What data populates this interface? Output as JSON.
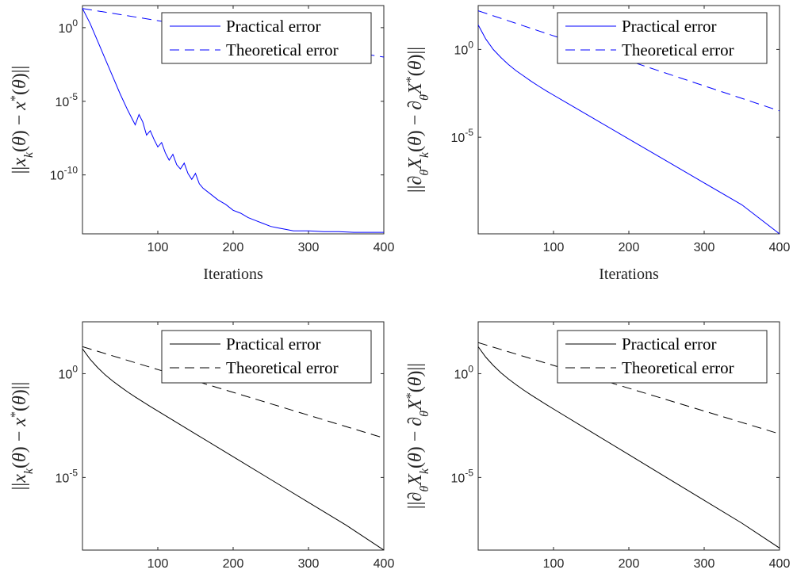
{
  "chart_data": [
    {
      "type": "line",
      "scale_y": "log",
      "xlim": [
        0,
        400
      ],
      "ylim_log10": [
        -14,
        1.5
      ],
      "x_ticks": [
        100,
        200,
        300,
        400
      ],
      "x_tick_labels": [
        "100",
        "200",
        "300",
        "400"
      ],
      "y_ticks_log10": [
        0,
        -5,
        -10
      ],
      "y_tick_labels": [
        {
          "base": "10",
          "exp": "0"
        },
        {
          "base": "10",
          "exp": "-5"
        },
        {
          "base": "10",
          "exp": "-10"
        }
      ],
      "xlabel": "Iterations",
      "ylabel": "||x_k(θ) − x*(θ)||",
      "color": "#0000ff",
      "legend": {
        "position": "top-right"
      },
      "series": [
        {
          "name": "Practical error",
          "style": "solid",
          "x": [
            0,
            10,
            20,
            30,
            40,
            50,
            60,
            70,
            75,
            80,
            85,
            90,
            95,
            100,
            105,
            110,
            115,
            120,
            125,
            130,
            135,
            140,
            145,
            150,
            155,
            160,
            170,
            180,
            190,
            200,
            210,
            220,
            230,
            240,
            250,
            260,
            270,
            280,
            290,
            300,
            320,
            340,
            360,
            380,
            400
          ],
          "log10_y": [
            1.3,
            0.3,
            -0.9,
            -2.1,
            -3.3,
            -4.5,
            -5.6,
            -6.6,
            -5.9,
            -6.4,
            -7.3,
            -7.0,
            -7.6,
            -8.1,
            -7.8,
            -8.5,
            -9.0,
            -8.6,
            -9.3,
            -9.6,
            -9.2,
            -9.9,
            -10.3,
            -9.9,
            -10.6,
            -10.9,
            -11.3,
            -11.7,
            -12.0,
            -12.4,
            -12.6,
            -12.9,
            -13.1,
            -13.3,
            -13.5,
            -13.6,
            -13.7,
            -13.8,
            -13.8,
            -13.8,
            -13.85,
            -13.85,
            -13.9,
            -13.9,
            -13.9
          ]
        },
        {
          "name": "Theoretical error",
          "style": "dashed",
          "x": [
            0,
            400
          ],
          "log10_y": [
            1.3,
            -2.0
          ]
        }
      ]
    },
    {
      "type": "line",
      "scale_y": "log",
      "xlim": [
        0,
        400
      ],
      "ylim_log10": [
        -10.5,
        2.5
      ],
      "x_ticks": [
        100,
        200,
        300,
        400
      ],
      "x_tick_labels": [
        "100",
        "200",
        "300",
        "400"
      ],
      "y_ticks_log10": [
        0,
        -5
      ],
      "y_tick_labels": [
        {
          "base": "10",
          "exp": "0"
        },
        {
          "base": "10",
          "exp": "-5"
        }
      ],
      "xlabel": "Iterations",
      "ylabel": "||∂θXk(θ) − ∂θX*(θ)||",
      "color": "#0000ff",
      "legend": {
        "position": "top-right"
      },
      "series": [
        {
          "name": "Practical error",
          "style": "solid",
          "x": [
            0,
            10,
            20,
            30,
            40,
            50,
            60,
            70,
            80,
            90,
            100,
            150,
            200,
            250,
            300,
            350,
            400
          ],
          "log10_y": [
            1.4,
            0.6,
            0.0,
            -0.45,
            -0.85,
            -1.2,
            -1.5,
            -1.8,
            -2.08,
            -2.35,
            -2.6,
            -3.85,
            -5.1,
            -6.35,
            -7.6,
            -8.85,
            -10.5
          ]
        },
        {
          "name": "Theoretical error",
          "style": "dashed",
          "x": [
            0,
            400
          ],
          "log10_y": [
            2.2,
            -3.5
          ]
        }
      ]
    },
    {
      "type": "line",
      "scale_y": "log",
      "xlim": [
        0,
        400
      ],
      "ylim_log10": [
        -8.5,
        2.5
      ],
      "x_ticks": [
        100,
        200,
        300,
        400
      ],
      "x_tick_labels": [
        "100",
        "200",
        "300",
        "400"
      ],
      "y_ticks_log10": [
        0,
        -5
      ],
      "y_tick_labels": [
        {
          "base": "10",
          "exp": "0"
        },
        {
          "base": "10",
          "exp": "-5"
        }
      ],
      "xlabel": "",
      "ylabel": "||x_k(θ) − x*(θ)||",
      "color": "#000000",
      "legend": {
        "position": "top-right"
      },
      "series": [
        {
          "name": "Practical error",
          "style": "solid",
          "x": [
            0,
            10,
            20,
            30,
            40,
            50,
            60,
            70,
            80,
            90,
            100,
            150,
            200,
            250,
            300,
            350,
            400
          ],
          "log10_y": [
            1.2,
            0.7,
            0.3,
            -0.05,
            -0.35,
            -0.62,
            -0.88,
            -1.12,
            -1.35,
            -1.58,
            -1.8,
            -2.9,
            -4.0,
            -5.1,
            -6.2,
            -7.3,
            -8.5
          ]
        },
        {
          "name": "Theoretical error",
          "style": "dashed",
          "x": [
            0,
            400
          ],
          "log10_y": [
            1.3,
            -3.1
          ]
        }
      ]
    },
    {
      "type": "line",
      "scale_y": "log",
      "xlim": [
        0,
        400
      ],
      "ylim_log10": [
        -8.5,
        2.5
      ],
      "x_ticks": [
        100,
        200,
        300,
        400
      ],
      "x_tick_labels": [
        "100",
        "200",
        "300",
        "400"
      ],
      "y_ticks_log10": [
        0,
        -5
      ],
      "y_tick_labels": [
        {
          "base": "10",
          "exp": "0"
        },
        {
          "base": "10",
          "exp": "-5"
        }
      ],
      "xlabel": "",
      "ylabel": "||∂θXk(θ) − ∂θX*(θ)||",
      "color": "#000000",
      "legend": {
        "position": "top-right"
      },
      "series": [
        {
          "name": "Practical error",
          "style": "solid",
          "x": [
            0,
            10,
            20,
            30,
            40,
            50,
            60,
            70,
            80,
            90,
            100,
            150,
            200,
            250,
            300,
            350,
            400
          ],
          "log10_y": [
            1.3,
            0.8,
            0.4,
            0.05,
            -0.25,
            -0.52,
            -0.78,
            -1.02,
            -1.25,
            -1.48,
            -1.7,
            -2.8,
            -3.9,
            -5.0,
            -6.1,
            -7.2,
            -8.4
          ]
        },
        {
          "name": "Theoretical error",
          "style": "dashed",
          "x": [
            0,
            400
          ],
          "log10_y": [
            1.5,
            -2.9
          ]
        }
      ]
    }
  ]
}
